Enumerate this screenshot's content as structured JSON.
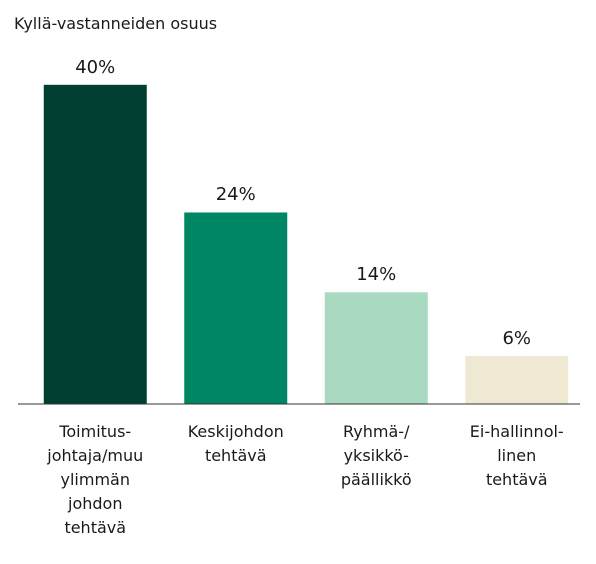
{
  "chart_data": {
    "type": "bar",
    "title": "Kyllä-vastanneiden osuus",
    "categories": [
      "Toimitus-\njohtaja/muu\nylimmän\njohdon\ntehtävä",
      "Keskijohdon\ntehtävä",
      "Ryhmä-/\nyksikkö-\npäällikkö",
      "Ei-hallinnol-\nlinen\ntehtävä"
    ],
    "values": [
      40,
      24,
      14,
      6
    ],
    "value_labels": [
      "40%",
      "24%",
      "14%",
      "6%"
    ],
    "colors": [
      "#003f31",
      "#008662",
      "#a9d9c1",
      "#efe9d4"
    ]
  }
}
